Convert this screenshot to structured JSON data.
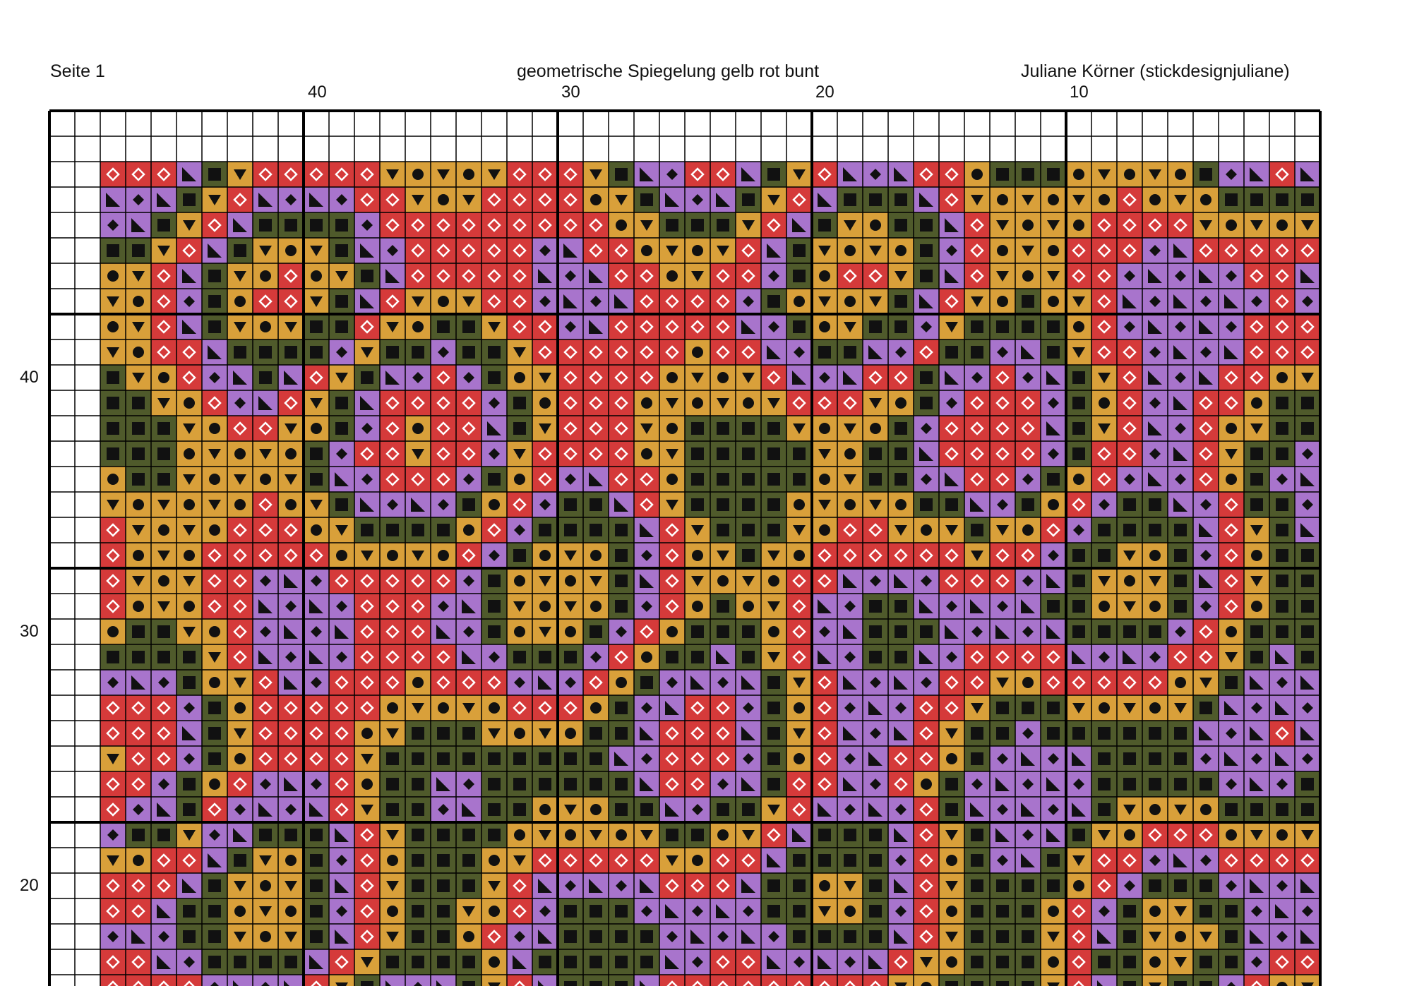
{
  "header": {
    "page_label": "Seite 1",
    "pattern_title": "geometrische Spiegelung gelb rot bunt",
    "author": "Juliane Körner (stickdesignjuliane)"
  },
  "column_numbers": [
    "40",
    "30",
    "20",
    "10"
  ],
  "row_numbers": [
    "40",
    "30",
    "20"
  ],
  "palette": {
    "purple": "#a874cc",
    "red": "#d53a3a",
    "gold": "#d9a03a",
    "olive": "#4f5a2b",
    "grid": "#000000"
  },
  "symbols": {
    "purple_a": "diagonal-triangle-icon",
    "purple_b": "diamond-icon",
    "red": "diamond-outline-icon",
    "gold_a": "triangle-down-icon",
    "gold_b": "dot-icon",
    "olive": "square-icon"
  }
}
